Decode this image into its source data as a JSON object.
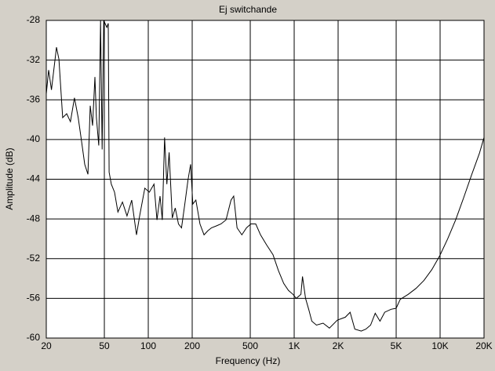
{
  "chart_data": {
    "type": "line",
    "title": "Ej switchande",
    "x_label": "Frequency (Hz)",
    "y_label": "Amplitude (dB)",
    "x": [
      20,
      20.75,
      21.7,
      23.5,
      24.4,
      25.9,
      27.6,
      29.3,
      31.2,
      33.1,
      34.9,
      36.7,
      38.6,
      40.0,
      41.5,
      43.1,
      44.1,
      45.8,
      47.1,
      48.3,
      49.5,
      52.0,
      53.2,
      53.9,
      55.8,
      58.7,
      61.9,
      66.5,
      71.5,
      77.0,
      83,
      87.3,
      94.7,
      101.7,
      109.4,
      114.7,
      120.4,
      124.8,
      129.4,
      134.1,
      139,
      146,
      153,
      161,
      169,
      178,
      187,
      195,
      202,
      212,
      226,
      241,
      256,
      271,
      293,
      315,
      341,
      369,
      385,
      406,
      438,
      471,
      505,
      545,
      588,
      646,
      716,
      780,
      848,
      913,
      982,
      1032,
      1112,
      1140,
      1196,
      1258,
      1321,
      1422,
      1578,
      1743,
      1976,
      2240,
      2416,
      2602,
      2880,
      3100,
      3337,
      3594,
      3873,
      4170,
      4610,
      5000,
      5330,
      6040,
      6840,
      7750,
      8780,
      9950,
      11280,
      12780,
      14480,
      16400,
      18600,
      20000
    ],
    "values": [
      -35.4,
      -33,
      -35,
      -30.7,
      -31.9,
      -37.8,
      -37.4,
      -38.2,
      -35.8,
      -37.8,
      -40.2,
      -42.5,
      -43.5,
      -36.6,
      -38.6,
      -33.7,
      -37.8,
      -40.6,
      -28,
      -41,
      -28,
      -28.7,
      -28.3,
      -43.3,
      -44.5,
      -45.3,
      -47.3,
      -46.3,
      -47.7,
      -46.1,
      -49.6,
      -47.7,
      -44.9,
      -45.3,
      -44.5,
      -48.1,
      -45.7,
      -48.1,
      -39.8,
      -44.5,
      -41.3,
      -47.9,
      -46.9,
      -48.5,
      -48.9,
      -46.5,
      -44.1,
      -42.5,
      -46.5,
      -46.1,
      -48.5,
      -49.6,
      -49.2,
      -48.9,
      -48.7,
      -48.5,
      -48.1,
      -46.1,
      -45.7,
      -48.9,
      -49.6,
      -48.9,
      -48.5,
      -48.5,
      -49.6,
      -50.6,
      -51.6,
      -53.2,
      -54.5,
      -55.2,
      -55.6,
      -56,
      -55.6,
      -53.8,
      -56,
      -57.1,
      -58.3,
      -58.7,
      -58.5,
      -59,
      -58.2,
      -57.9,
      -57.4,
      -59.1,
      -59.3,
      -59.1,
      -58.7,
      -57.5,
      -58.3,
      -57.4,
      -57.1,
      -57,
      -56.1,
      -55.6,
      -55,
      -54.2,
      -53.1,
      -51.7,
      -50,
      -48.1,
      -45.9,
      -43.6,
      -41.4,
      -39.8
    ],
    "color": "#000000",
    "xlim": [
      20,
      20000
    ],
    "xscale": "log",
    "xticks": [
      20,
      50,
      100,
      200,
      500,
      {
        "value": 1000,
        "label": "1K"
      },
      {
        "value": 2000,
        "label": "2K"
      },
      {
        "value": 5000,
        "label": "5K"
      },
      {
        "value": 10000,
        "label": "10K"
      },
      {
        "value": 20000,
        "label": "20K"
      }
    ],
    "ylim": [
      -60,
      -28
    ],
    "yticks": [
      -28,
      -32,
      -36,
      -40,
      -44,
      -48,
      -52,
      -56,
      -60
    ],
    "grid": true
  }
}
